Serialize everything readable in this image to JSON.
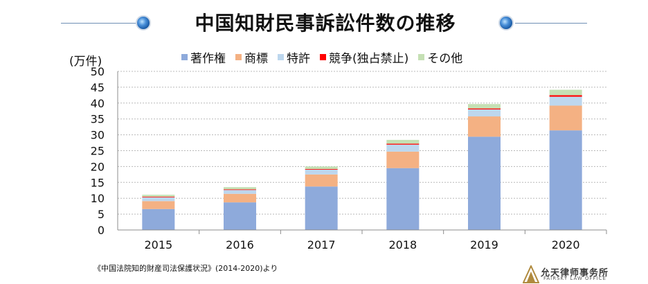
{
  "title": "中国知財民事訴訟件数の推移",
  "unit_label": "(万件)",
  "source_note": "《中国法院知的財産司法保護状況》(2014-2020)より",
  "logo": {
    "name_cn": "允天律师事务所",
    "name_en": "FAIRSKY LAW OFFICE"
  },
  "colors": {
    "title_accent": "#1f5fa8",
    "grid": "#b8b8b8"
  },
  "chart_data": {
    "type": "bar",
    "stacked": true,
    "title": "中国知財民事訴訟件数の推移",
    "ylabel": "(万件)",
    "xlabel": "",
    "ylim": [
      0,
      50
    ],
    "yticks": [
      0,
      5,
      10,
      15,
      20,
      25,
      30,
      35,
      40,
      45,
      50
    ],
    "grid": true,
    "legend_position": "top",
    "categories": [
      "2015",
      "2016",
      "2017",
      "2018",
      "2019",
      "2020"
    ],
    "series": [
      {
        "name": "著作権",
        "color": "#8eaadb",
        "values": [
          6.6,
          8.7,
          13.7,
          19.5,
          29.4,
          31.4
        ]
      },
      {
        "name": "商標",
        "color": "#f4b183",
        "values": [
          2.5,
          2.7,
          3.8,
          5.2,
          6.4,
          7.8
        ]
      },
      {
        "name": "特許",
        "color": "#bdd7ee",
        "values": [
          1.2,
          1.2,
          1.5,
          2.2,
          2.2,
          2.8
        ]
      },
      {
        "name": "競争(独占禁止)",
        "color": "#ff0000",
        "values": [
          0.2,
          0.2,
          0.2,
          0.3,
          0.3,
          0.5
        ]
      },
      {
        "name": "その他",
        "color": "#c5e0b4",
        "values": [
          0.6,
          0.7,
          0.8,
          1.2,
          1.4,
          1.7
        ]
      }
    ]
  }
}
